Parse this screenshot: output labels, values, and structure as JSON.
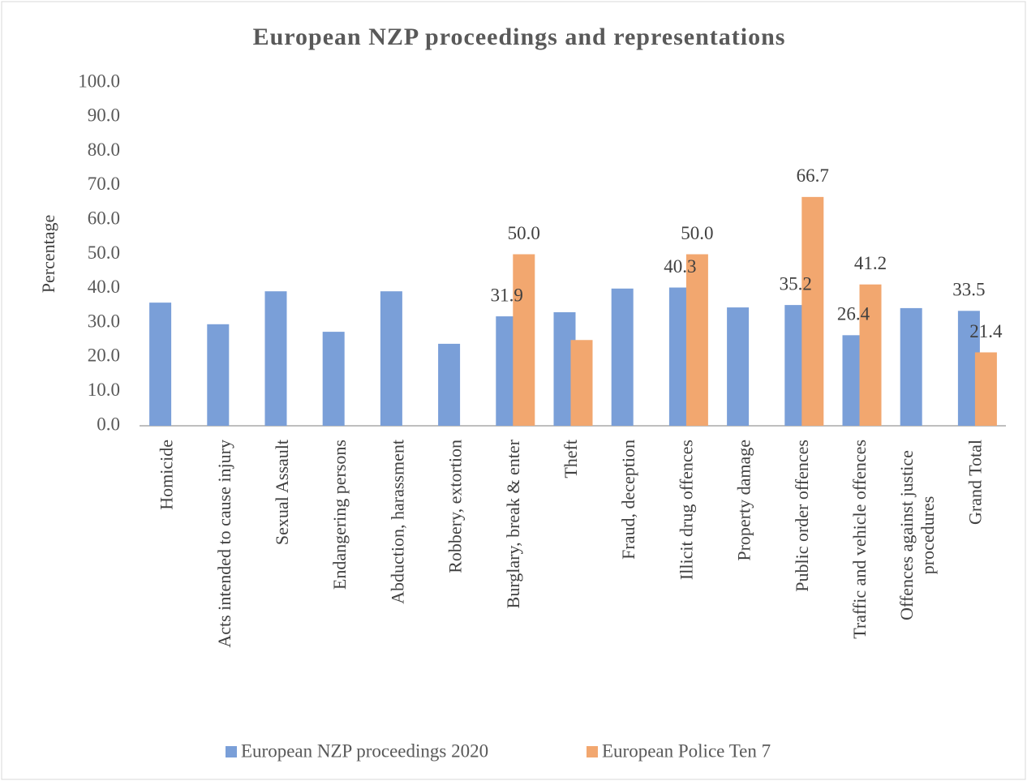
{
  "chart_data": {
    "type": "bar",
    "title": "European NZP proceedings and representations",
    "y_label": "Percentage",
    "categories": [
      "Homicide",
      "Acts intended to cause injury",
      "Sexual Assault",
      "Endangering persons",
      "Abduction, harassment",
      "Robbery, extortion",
      "Burglary, break & enter",
      "Theft",
      "Fraud, deception",
      "Illicit drug offences",
      "Property damage",
      "Public order offences",
      "Traffic and vehicle offences",
      "Offences against justice procedures",
      "Grand Total"
    ],
    "series": [
      {
        "name": "European NZP proceedings 2020",
        "color": "#7a9fd8",
        "values": [
          35.9,
          29.6,
          39.2,
          27.4,
          39.2,
          23.9,
          31.9,
          33.1,
          40.0,
          40.3,
          34.5,
          35.2,
          26.4,
          34.3,
          33.5
        ],
        "value_labels": [
          null,
          null,
          null,
          null,
          null,
          null,
          "31.9",
          null,
          null,
          "40.3",
          null,
          "35.2",
          "26.4",
          null,
          "33.5"
        ]
      },
      {
        "name": "European Police Ten 7",
        "color": "#f2a76f",
        "values": [
          null,
          null,
          null,
          null,
          null,
          null,
          50.0,
          25.0,
          null,
          50.0,
          null,
          66.7,
          41.2,
          null,
          21.4
        ],
        "value_labels": [
          null,
          null,
          null,
          null,
          null,
          null,
          "50.0",
          null,
          null,
          "50.0",
          null,
          "66.7",
          "41.2",
          null,
          "21.4"
        ]
      }
    ],
    "ylim": [
      0,
      100
    ],
    "yticks": [
      {
        "value": 0,
        "label": "0.0"
      },
      {
        "value": 10,
        "label": "10.0"
      },
      {
        "value": 20,
        "label": "20.0"
      },
      {
        "value": 30,
        "label": "30.0"
      },
      {
        "value": 40,
        "label": "40.0"
      },
      {
        "value": 50,
        "label": "50.0"
      },
      {
        "value": 60,
        "label": "60.0"
      },
      {
        "value": 70,
        "label": "70.0"
      },
      {
        "value": 80,
        "label": "80.0"
      },
      {
        "value": 90,
        "label": "90.0"
      },
      {
        "value": 100,
        "label": "100.0"
      }
    ],
    "grid": false,
    "legend": "bottom"
  }
}
